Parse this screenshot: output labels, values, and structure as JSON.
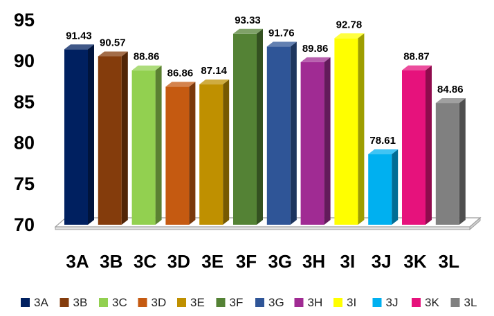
{
  "chart_data": {
    "type": "bar",
    "categories": [
      "3A",
      "3B",
      "3C",
      "3D",
      "3E",
      "3F",
      "3G",
      "3H",
      "3I",
      "3J",
      "3K",
      "3L"
    ],
    "values": [
      91.43,
      90.57,
      88.86,
      86.86,
      87.14,
      93.33,
      91.76,
      89.86,
      92.78,
      78.61,
      88.87,
      84.86
    ],
    "colors": [
      "#002060",
      "#843C0C",
      "#92D050",
      "#C55A11",
      "#BF9000",
      "#548235",
      "#2F5597",
      "#A02B93",
      "#FFFF00",
      "#00B0F0",
      "#E6127C",
      "#808080"
    ],
    "yticks": [
      70,
      75,
      80,
      85,
      90,
      95
    ],
    "ylim": [
      70,
      95
    ],
    "title": "",
    "xlabel": "",
    "ylabel": "",
    "grid": false,
    "legend": "bottom",
    "data_labels": true,
    "style": "3d-column"
  }
}
